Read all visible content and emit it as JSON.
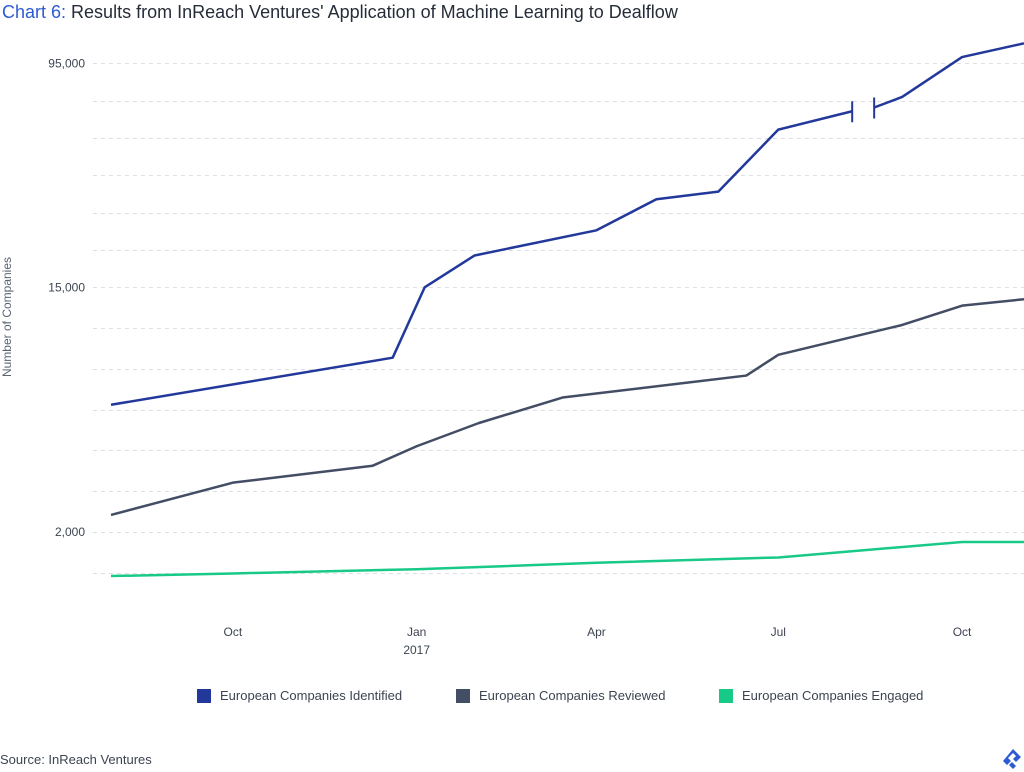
{
  "title": {
    "prefix": "Chart 6:",
    "text": "Results from InReach Ventures' Application of Machine Learning to Dealflow"
  },
  "source": "Source: InReach Ventures",
  "colors": {
    "identified": "#22399b",
    "reviewed": "#434d63",
    "engaged": "#18c987",
    "grid": "#dcdfe4",
    "accent": "#2d5bd2"
  },
  "chart_data": {
    "type": "line",
    "title": "",
    "xlabel": "",
    "ylabel": "Number of Companies",
    "y_scale": "log",
    "y_ticks": [
      {
        "value": 2000,
        "label": "2,000"
      },
      {
        "value": 15000,
        "label": "15,000"
      },
      {
        "value": 95000,
        "label": "95,000"
      }
    ],
    "x_ticks": [
      {
        "date": "2016-10-01",
        "label": "Oct",
        "sublabel": ""
      },
      {
        "date": "2017-01-01",
        "label": "Jan",
        "sublabel": "2017"
      },
      {
        "date": "2017-04-01",
        "label": "Apr",
        "sublabel": ""
      },
      {
        "date": "2017-07-01",
        "label": "Jul",
        "sublabel": ""
      },
      {
        "date": "2017-10-01",
        "label": "Oct",
        "sublabel": ""
      }
    ],
    "x_range": [
      "2016-08-01",
      "2017-11-01"
    ],
    "y_range": [
      1000,
      125000
    ],
    "axis_break": {
      "series": "European Companies Identified",
      "between": [
        "2017-08-07",
        "2017-08-18"
      ]
    },
    "grid": true,
    "legend_position": "bottom",
    "series": [
      {
        "name": "European Companies Identified",
        "points": [
          [
            "2016-08-01",
            5700
          ],
          [
            "2016-12-20",
            8400
          ],
          [
            "2017-01-05",
            15000
          ],
          [
            "2017-01-30",
            19500
          ],
          [
            "2017-04-01",
            24000
          ],
          [
            "2017-05-01",
            31000
          ],
          [
            "2017-06-01",
            33000
          ],
          [
            "2017-07-01",
            55000
          ],
          [
            "2017-08-07",
            64000
          ],
          [
            "2017-08-18",
            66000
          ],
          [
            "2017-09-01",
            72000
          ],
          [
            "2017-10-01",
            100000
          ],
          [
            "2017-11-01",
            112000
          ]
        ]
      },
      {
        "name": "European Companies Reviewed",
        "points": [
          [
            "2016-08-01",
            2300
          ],
          [
            "2016-10-01",
            3000
          ],
          [
            "2016-12-10",
            3450
          ],
          [
            "2017-01-01",
            4050
          ],
          [
            "2017-02-01",
            4900
          ],
          [
            "2017-03-15",
            6050
          ],
          [
            "2017-06-15",
            7250
          ],
          [
            "2017-07-01",
            8600
          ],
          [
            "2017-09-01",
            11000
          ],
          [
            "2017-10-01",
            12900
          ],
          [
            "2017-11-01",
            13600
          ]
        ]
      },
      {
        "name": "European Companies Engaged",
        "points": [
          [
            "2016-08-01",
            1390
          ],
          [
            "2016-10-01",
            1420
          ],
          [
            "2017-01-01",
            1470
          ],
          [
            "2017-04-01",
            1550
          ],
          [
            "2017-07-01",
            1620
          ],
          [
            "2017-10-01",
            1840
          ],
          [
            "2017-11-01",
            1840
          ]
        ]
      }
    ]
  }
}
